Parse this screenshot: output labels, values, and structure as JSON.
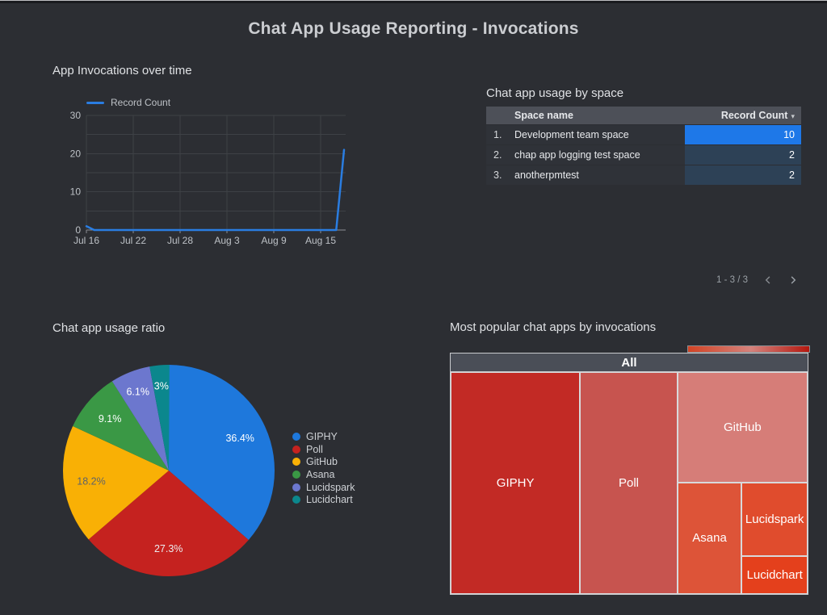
{
  "page": {
    "title": "Chat App Usage Reporting - Invocations"
  },
  "chart_data": [
    {
      "id": "app-invocations-over-time",
      "type": "line",
      "title": "App Invocations over time",
      "grid": true,
      "legend_position": "top",
      "ylim": [
        0,
        30
      ],
      "y_ticks": [
        0,
        10,
        20,
        30
      ],
      "y_grid_step": 5,
      "x_domain_days": [
        0,
        33.5
      ],
      "x_ticks": [
        {
          "day": 0,
          "label": "Jul 16"
        },
        {
          "day": 6,
          "label": "Jul 22"
        },
        {
          "day": 12,
          "label": "Jul 28"
        },
        {
          "day": 18,
          "label": "Aug 3"
        },
        {
          "day": 24,
          "label": "Aug 9"
        },
        {
          "day": 30,
          "label": "Aug 15"
        }
      ],
      "series": [
        {
          "name": "Record Count",
          "color": "#2A7DE1",
          "points": [
            {
              "day": 0,
              "date": "Jul 16",
              "value": 1
            },
            {
              "day": 1,
              "date": "Jul 17",
              "value": 0
            },
            {
              "day": 32,
              "date": "Aug 17",
              "value": 0
            },
            {
              "day": 33,
              "date": "Aug 18",
              "value": 21
            }
          ]
        }
      ]
    },
    {
      "id": "chat-app-usage-by-space",
      "type": "table",
      "title": "Chat app usage by space",
      "columns": [
        "Space name",
        "Record Count"
      ],
      "sort": {
        "column": "Record Count",
        "direction": "desc"
      },
      "rows": [
        {
          "index": "1.",
          "name": "Development team space",
          "value": 10,
          "bar_color": "#1E78E8"
        },
        {
          "index": "2.",
          "name": "chap app logging test space",
          "value": 2,
          "bar_color": "#2D4156"
        },
        {
          "index": "3.",
          "name": "anotherpmtest",
          "value": 2,
          "bar_color": "#2D4156"
        }
      ],
      "pagination": {
        "label": "1 - 3 / 3"
      }
    },
    {
      "id": "chat-app-usage-ratio",
      "type": "pie",
      "title": "Chat app usage ratio",
      "start": "top",
      "direction": "clockwise",
      "legend_position": "right",
      "slices": [
        {
          "label": "GIPHY",
          "pct": 36.4,
          "display": "36.4%",
          "color": "#1E78DC",
          "label_color": "#FFFFFF"
        },
        {
          "label": "Poll",
          "pct": 27.3,
          "display": "27.3%",
          "color": "#C5221F",
          "label_color": "#ECEDEF"
        },
        {
          "label": "GitHub",
          "pct": 18.2,
          "display": "18.2%",
          "color": "#F9B005",
          "label_color": "#5F6368"
        },
        {
          "label": "Asana",
          "pct": 9.1,
          "display": "9.1%",
          "color": "#3A9845",
          "label_color": "#FFFFFF"
        },
        {
          "label": "Lucidspark",
          "pct": 6.1,
          "display": "6.1%",
          "color": "#6C77CE",
          "label_color": "#FFFFFF"
        },
        {
          "label": "Lucidchart",
          "pct": 3.0,
          "display": "3%",
          "color": "#0B878D",
          "label_color": "#FFFFFF"
        }
      ]
    },
    {
      "id": "most-popular-chat-apps",
      "type": "treemap",
      "title": "Most popular chat apps by invocations",
      "root_label": "All",
      "color_scale": [
        "#D34324",
        "#D5827C",
        "#B5170E"
      ],
      "tiles": [
        {
          "label": "GIPHY",
          "share_pct": 36.4,
          "color": "#C22A25",
          "rect": {
            "x": 0,
            "y": 0,
            "w": 0.3626,
            "h": 1
          }
        },
        {
          "label": "Poll",
          "share_pct": 27.3,
          "color": "#C7544F",
          "rect": {
            "x": 0.3626,
            "y": 0,
            "w": 0.2725,
            "h": 1
          }
        },
        {
          "label": "GitHub",
          "share_pct": 18.2,
          "color": "#D67D78",
          "rect": {
            "x": 0.6351,
            "y": 0,
            "w": 0.3649,
            "h": 0.4982
          }
        },
        {
          "label": "Asana",
          "share_pct": 9.1,
          "color": "#DD5438",
          "rect": {
            "x": 0.6351,
            "y": 0.4982,
            "w": 0.1802,
            "h": 0.5018
          }
        },
        {
          "label": "Lucidspark",
          "share_pct": 6.1,
          "color": "#E04C2D",
          "rect": {
            "x": 0.8153,
            "y": 0.4982,
            "w": 0.1847,
            "h": 0.3321
          }
        },
        {
          "label": "Lucidchart",
          "share_pct": 3.0,
          "color": "#E4401C",
          "rect": {
            "x": 0.8153,
            "y": 0.8303,
            "w": 0.1847,
            "h": 0.1697
          }
        }
      ]
    }
  ]
}
